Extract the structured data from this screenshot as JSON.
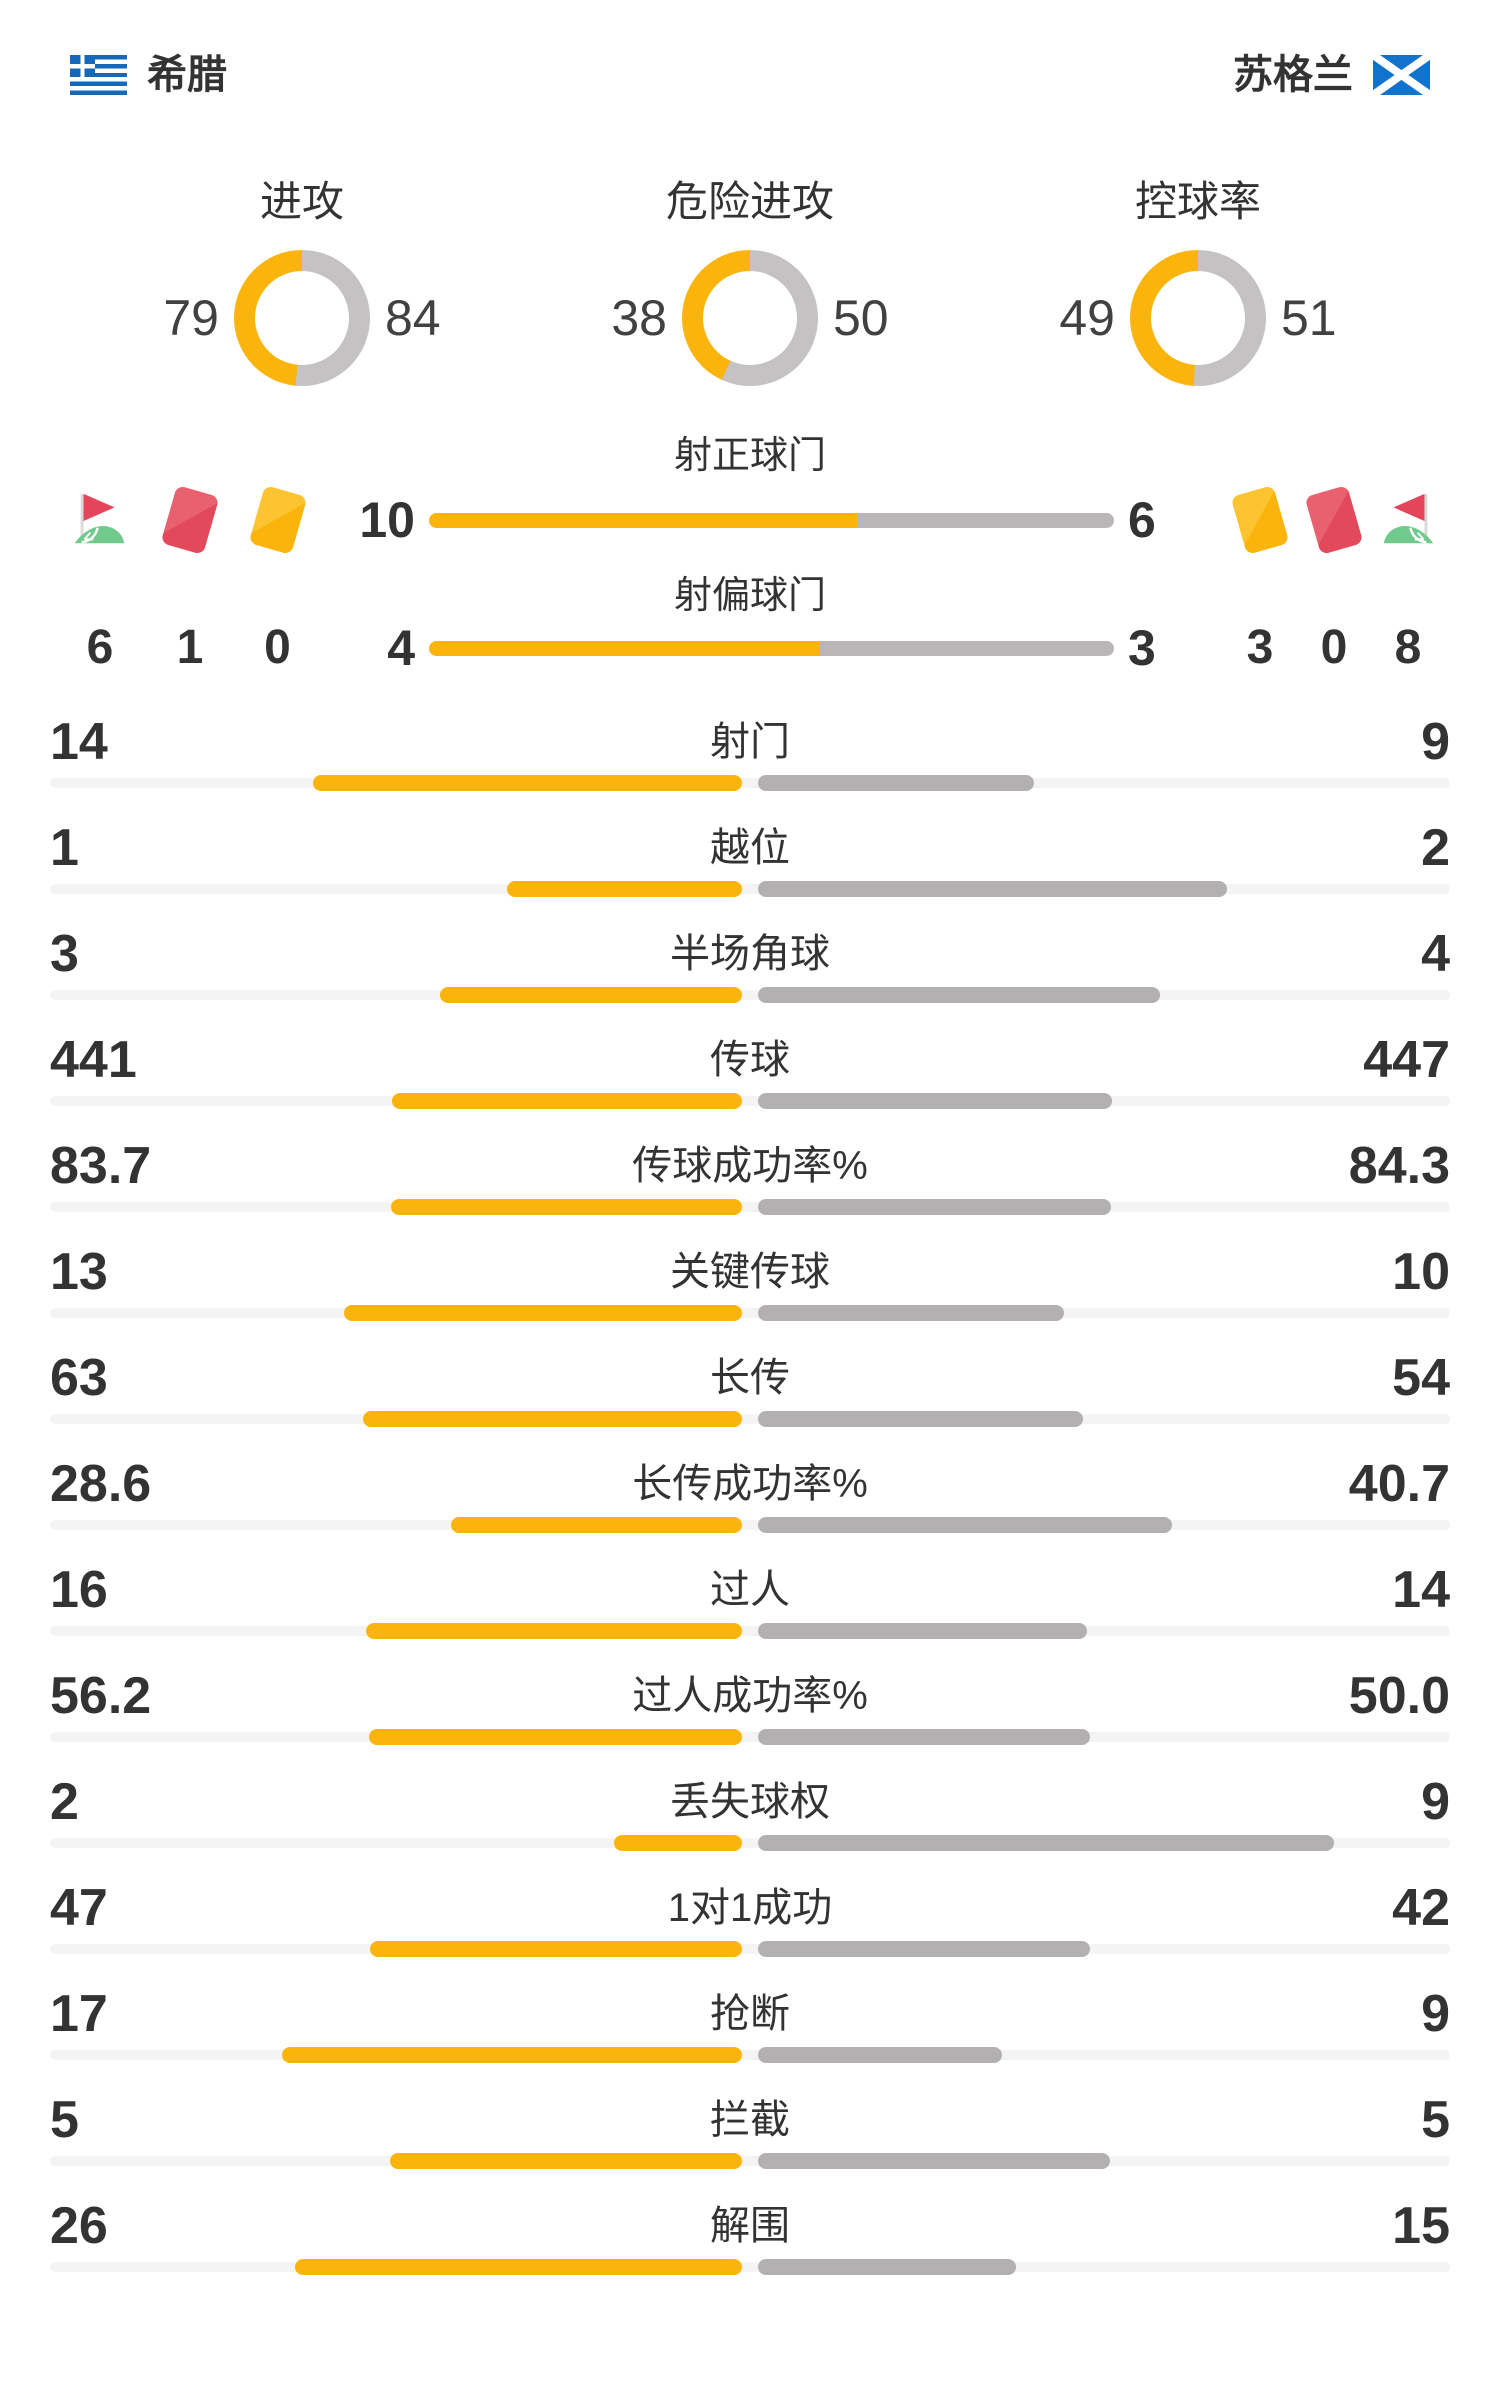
{
  "header": {
    "home_team": "希腊",
    "away_team": "苏格兰"
  },
  "discipline": {
    "home": {
      "corner_flags": 6,
      "red_cards": 1,
      "yellow_cards": 0
    },
    "away": {
      "corner_flags": 8,
      "red_cards": 0,
      "yellow_cards": 3
    }
  },
  "colors": {
    "home_yellow": "#fbb40c",
    "away_gray": "#c4c2c3",
    "bar_gray": "#b3b0b1",
    "track_gray": "#f4f4f4",
    "text": "#333333",
    "red_card": "#e2495b",
    "corner_green": "#6fca8c",
    "greece_blue": "#1569b8",
    "scotland_blue": "#1173cc"
  },
  "chart_data": [
    {
      "type": "pie",
      "subtype": "donut-gauges",
      "legend_position": "sides",
      "metrics": [
        {
          "label": "进攻",
          "home": 79,
          "away": 84
        },
        {
          "label": "危险进攻",
          "home": 38,
          "away": 50
        },
        {
          "label": "控球率",
          "home": 49,
          "away": 51
        }
      ]
    },
    {
      "type": "bar",
      "subtype": "head-to-head-single-bar",
      "rows": [
        {
          "label": "射正球门",
          "home": 10,
          "away": 6
        },
        {
          "label": "射偏球门",
          "home": 4,
          "away": 3
        }
      ]
    },
    {
      "type": "bar",
      "subtype": "head-to-head-split-bars",
      "rows": [
        {
          "label": "射门",
          "home": "14",
          "away": "9"
        },
        {
          "label": "越位",
          "home": "1",
          "away": "2"
        },
        {
          "label": "半场角球",
          "home": "3",
          "away": "4"
        },
        {
          "label": "传球",
          "home": "441",
          "away": "447"
        },
        {
          "label": "传球成功率%",
          "home": "83.7",
          "away": "84.3"
        },
        {
          "label": "关键传球",
          "home": "13",
          "away": "10"
        },
        {
          "label": "长传",
          "home": "63",
          "away": "54"
        },
        {
          "label": "长传成功率%",
          "home": "28.6",
          "away": "40.7"
        },
        {
          "label": "过人",
          "home": "16",
          "away": "14"
        },
        {
          "label": "过人成功率%",
          "home": "56.2",
          "away": "50.0"
        },
        {
          "label": "丢失球权",
          "home": "2",
          "away": "9"
        },
        {
          "label": "1对1成功",
          "home": "47",
          "away": "42"
        },
        {
          "label": "抢断",
          "home": "17",
          "away": "9"
        },
        {
          "label": "拦截",
          "home": "5",
          "away": "5"
        },
        {
          "label": "解围",
          "home": "26",
          "away": "15"
        }
      ]
    }
  ]
}
